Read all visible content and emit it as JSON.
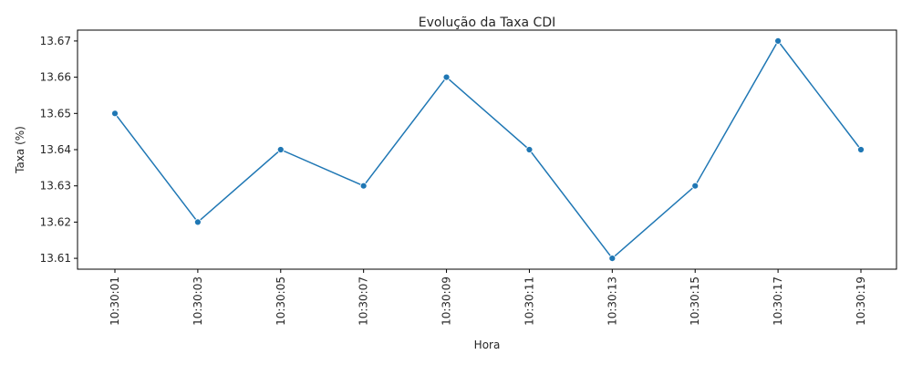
{
  "chart_data": {
    "type": "line",
    "title": "Evolução da Taxa CDI",
    "xlabel": "Hora",
    "ylabel": "Taxa (%)",
    "categories": [
      "10:30:01",
      "10:30:03",
      "10:30:05",
      "10:30:07",
      "10:30:09",
      "10:30:11",
      "10:30:13",
      "10:30:15",
      "10:30:17",
      "10:30:19"
    ],
    "series": [
      {
        "values": [
          13.65,
          13.62,
          13.64,
          13.63,
          13.66,
          13.64,
          13.61,
          13.63,
          13.67,
          13.64
        ]
      }
    ],
    "yticks": [
      "13.61",
      "13.62",
      "13.63",
      "13.64",
      "13.65",
      "13.66",
      "13.67"
    ],
    "ylim": [
      13.607,
      13.673
    ],
    "grid": false,
    "line_color": "#1f77b4",
    "marker": "circle"
  }
}
